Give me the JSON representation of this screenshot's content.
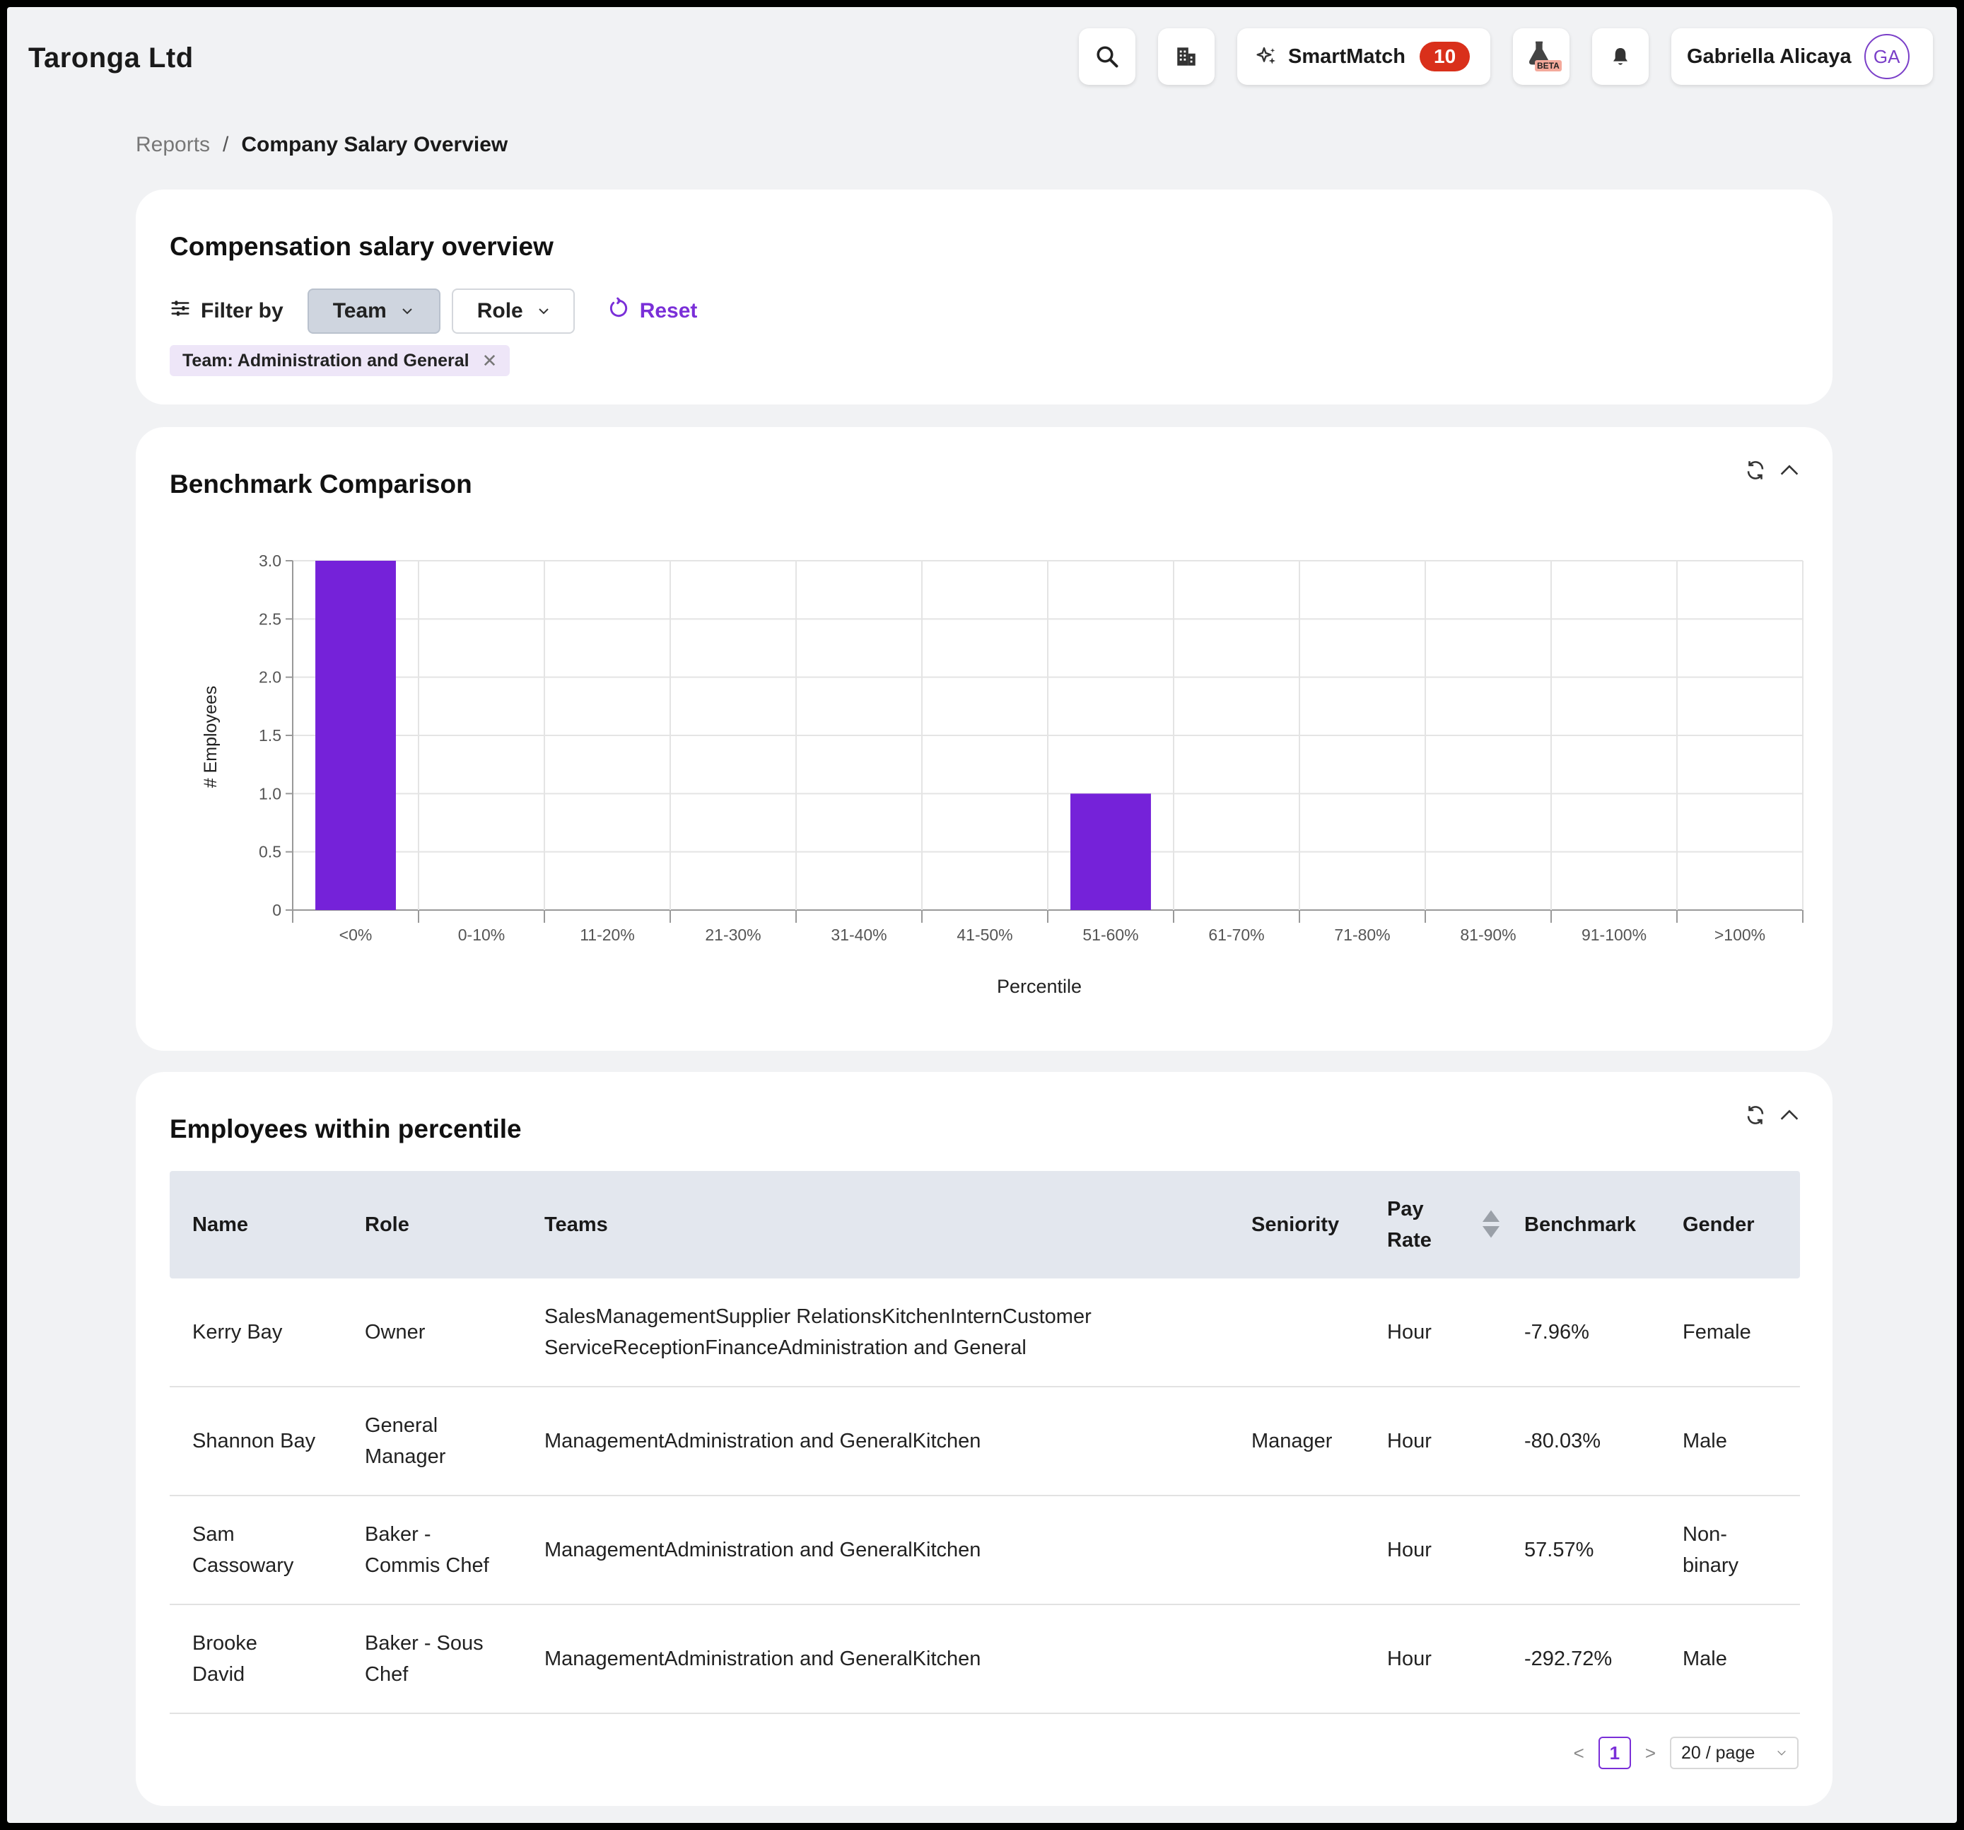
{
  "header": {
    "company_name": "Taronga Ltd",
    "smartmatch_label": "SmartMatch",
    "smartmatch_count": "10",
    "beta_label": "BETA",
    "user_name": "Gabriella Alicaya",
    "user_initials": "GA",
    "icons": [
      "search-icon",
      "building-icon",
      "sparkle-icon",
      "flask-icon",
      "bell-icon"
    ]
  },
  "breadcrumb": {
    "parent": "Reports",
    "separator": "/",
    "current": "Company Salary Overview"
  },
  "filter_card": {
    "title": "Compensation salary overview",
    "filter_label": "Filter by",
    "team_dropdown": "Team",
    "role_dropdown": "Role",
    "reset_label": "Reset",
    "active_tag": "Team: Administration and General"
  },
  "chart_card": {
    "title": "Benchmark Comparison"
  },
  "chart_data": {
    "type": "bar",
    "categories": [
      "<0%",
      "0-10%",
      "11-20%",
      "21-30%",
      "31-40%",
      "41-50%",
      "51-60%",
      "61-70%",
      "71-80%",
      "81-90%",
      "91-100%",
      ">100%"
    ],
    "values": [
      3,
      0,
      0,
      0,
      0,
      0,
      1,
      0,
      0,
      0,
      0,
      0
    ],
    "xlabel": "Percentile",
    "ylabel": "# Employees",
    "ylim": [
      0,
      3
    ],
    "yticks": [
      "0",
      "0.5",
      "1.0",
      "1.5",
      "2.0",
      "2.5",
      "3.0"
    ],
    "grid": true,
    "bar_color": "#7522d9"
  },
  "table_card": {
    "title": "Employees within percentile",
    "columns": {
      "name": "Name",
      "role": "Role",
      "teams": "Teams",
      "seniority": "Seniority",
      "pay_rate_1": "Pay",
      "pay_rate_2": "Rate",
      "benchmark": "Benchmark",
      "gender": "Gender"
    },
    "rows": [
      {
        "name": "Kerry Bay",
        "role": "Owner",
        "teams": "SalesManagementSupplier RelationsKitchenInternCustomer ServiceReceptionFinanceAdministration and General",
        "seniority": "",
        "pay_rate": "Hour",
        "benchmark": "-7.96%",
        "gender": "Female"
      },
      {
        "name": "Shannon Bay",
        "role": "General Manager",
        "teams": "ManagementAdministration and GeneralKitchen",
        "seniority": "Manager",
        "pay_rate": "Hour",
        "benchmark": "-80.03%",
        "gender": "Male"
      },
      {
        "name": "Sam Cassowary",
        "role": "Baker - Commis Chef",
        "teams": "ManagementAdministration and GeneralKitchen",
        "seniority": "",
        "pay_rate": "Hour",
        "benchmark": "57.57%",
        "gender": "Non-binary"
      },
      {
        "name": "Brooke David",
        "role": "Baker - Sous Chef",
        "teams": "ManagementAdministration and GeneralKitchen",
        "seniority": "",
        "pay_rate": "Hour",
        "benchmark": "-292.72%",
        "gender": "Male"
      }
    ],
    "pagination": {
      "prev": "<",
      "current_page": "1",
      "next": ">",
      "page_size": "20 / page"
    }
  }
}
